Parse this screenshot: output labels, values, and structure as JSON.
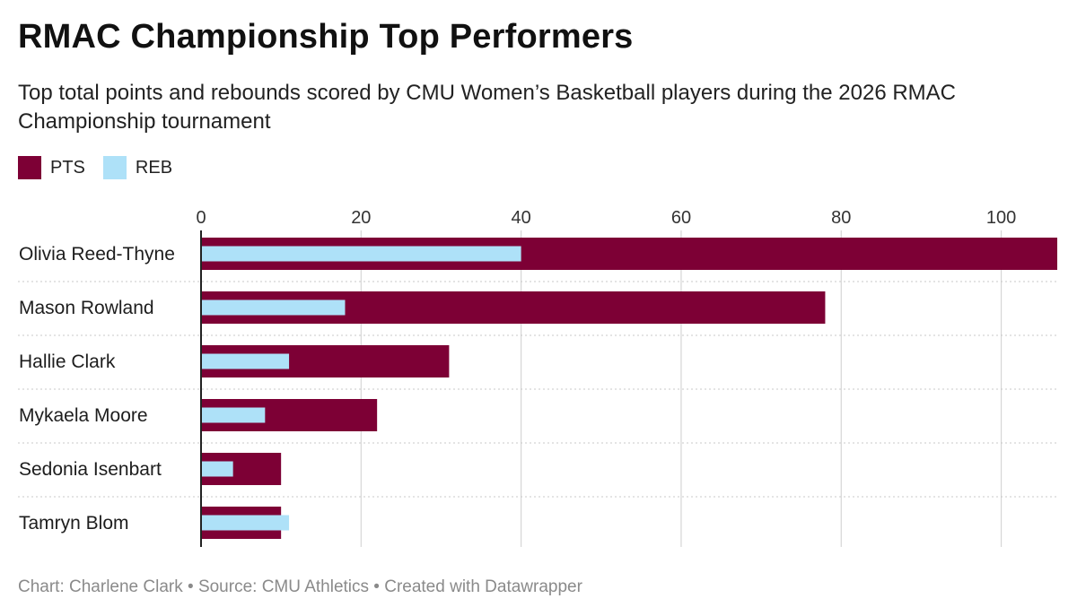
{
  "title": "RMAC Championship Top Performers",
  "subtitle": "Top total points and rebounds scored by CMU Women’s Basketball players during the 2026 RMAC Championship tournament",
  "footer": "Chart: Charlene Clark • Source: CMU Athletics • Created with Datawrapper",
  "colors": {
    "pts": "#7d0035",
    "reb": "#aee1f8",
    "grid": "#d6d6d6",
    "axis": "#222222"
  },
  "chart_data": {
    "type": "bar",
    "orientation": "horizontal",
    "categories": [
      "Olivia Reed-Thyne",
      "Mason Rowland",
      "Hallie Clark",
      "Mykaela Moore",
      "Sedonia Isenbart",
      "Tamryn Blom"
    ],
    "series": [
      {
        "name": "PTS",
        "values": [
          107,
          78,
          31,
          22,
          10,
          10
        ]
      },
      {
        "name": "REB",
        "values": [
          40,
          18,
          11,
          8,
          4,
          11
        ]
      }
    ],
    "xticks": [
      0,
      20,
      40,
      60,
      80,
      100
    ],
    "xlim": [
      0,
      107
    ],
    "grid": true,
    "legend_position": "top-left"
  }
}
